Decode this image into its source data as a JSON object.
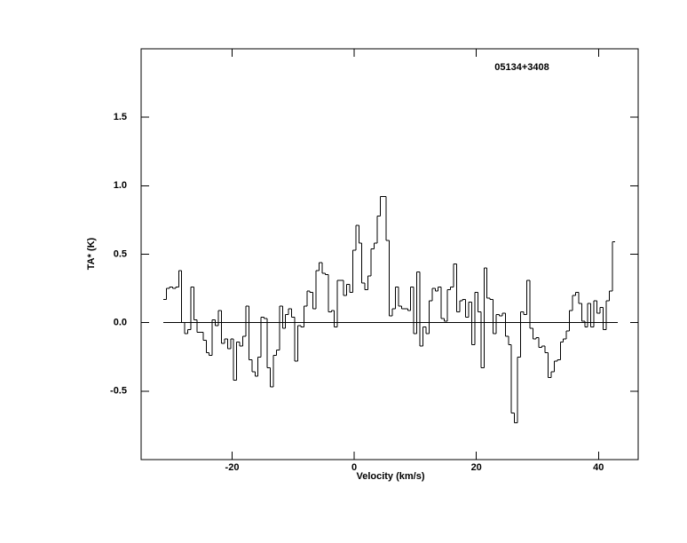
{
  "chart_data": {
    "type": "step",
    "annotation": "05134+3408",
    "xlabel": "Velocity (km/s)",
    "ylabel": "TA* (K)",
    "xlim": [
      -34.9,
      46.5
    ],
    "ylim": [
      -1.0,
      2.0
    ],
    "xticks": [
      -20,
      0,
      20,
      40
    ],
    "yticks": [
      {
        "value": -0.5,
        "label": "-0.5"
      },
      {
        "value": 0,
        "label": "0.0"
      },
      0.5,
      {
        "value": 1,
        "label": "1.0"
      },
      1.5
    ],
    "color": "#000000",
    "series": [
      {
        "name": "05134+3408",
        "color": "#000000",
        "x": [
          -31,
          -30.5,
          -30,
          -29.5,
          -29,
          -28.5,
          -28,
          -27.5,
          -27,
          -26.5,
          -26,
          -25.5,
          -25,
          -24.5,
          -24,
          -23.5,
          -23,
          -22.5,
          -22,
          -21.5,
          -21,
          -20.5,
          -20,
          -19.5,
          -19,
          -18.5,
          -18,
          -17.5,
          -17,
          -16.5,
          -16,
          -15.5,
          -15,
          -14.5,
          -14,
          -13.5,
          -13,
          -12.5,
          -12,
          -11.5,
          -11,
          -10.5,
          -10,
          -9.5,
          -9,
          -8.5,
          -8,
          -7.5,
          -7,
          -6.5,
          -6,
          -5.5,
          -5,
          -4.5,
          -4,
          -3.5,
          -3,
          -2.5,
          -2,
          -1.5,
          -1,
          -0.5,
          0,
          0.5,
          1,
          1.5,
          2,
          2.5,
          3,
          3.5,
          4,
          4.5,
          5,
          5.5,
          6,
          6.5,
          7,
          7.5,
          8,
          8.5,
          9,
          9.5,
          10,
          10.5,
          11,
          11.5,
          12,
          12.5,
          13,
          13.5,
          14,
          14.5,
          15,
          15.5,
          16,
          16.5,
          17,
          17.5,
          18,
          18.5,
          19,
          19.5,
          20,
          20.5,
          21,
          21.5,
          22,
          22.5,
          23,
          23.5,
          24,
          24.5,
          25,
          25.5,
          26,
          26.5,
          27,
          27.5,
          28,
          28.5,
          29,
          29.5,
          30,
          30.5,
          31,
          31.5,
          32,
          32.5,
          33,
          33.5,
          34,
          34.5,
          35,
          35.5,
          36,
          36.5,
          37,
          37.5,
          38,
          38.5,
          39,
          39.5,
          40,
          40.5,
          41,
          41.5,
          42,
          42.5
        ],
        "values": [
          0.17,
          0.25,
          0.26,
          0.25,
          0.26,
          0.38,
          0.0,
          -0.08,
          -0.05,
          0.26,
          0.02,
          -0.07,
          -0.07,
          -0.13,
          -0.22,
          -0.24,
          0.02,
          -0.02,
          0.09,
          -0.15,
          -0.12,
          -0.19,
          -0.12,
          -0.42,
          -0.14,
          -0.17,
          -0.1,
          0.12,
          -0.27,
          -0.36,
          -0.39,
          -0.25,
          0.04,
          0.03,
          -0.33,
          -0.47,
          -0.24,
          -0.2,
          0.12,
          -0.04,
          0.06,
          0.1,
          0.04,
          -0.28,
          -0.02,
          -0.03,
          0.12,
          0.23,
          0.22,
          0.1,
          0.38,
          0.44,
          0.36,
          0.35,
          0.08,
          0.09,
          -0.03,
          0.31,
          0.31,
          0.2,
          0.28,
          0.22,
          0.53,
          0.71,
          0.58,
          0.29,
          0.24,
          0.34,
          0.54,
          0.58,
          0.78,
          0.92,
          0.92,
          0.6,
          0.05,
          0.1,
          0.26,
          0.12,
          0.1,
          0.1,
          0.09,
          0.26,
          -0.08,
          0.37,
          -0.17,
          -0.03,
          -0.08,
          0.16,
          0.25,
          0.23,
          0.26,
          0.03,
          0.01,
          0.24,
          0.26,
          0.43,
          0.08,
          0.16,
          0.17,
          0.04,
          0.15,
          -0.16,
          0.22,
          0.08,
          -0.33,
          0.4,
          0.18,
          0.17,
          -0.08,
          0.06,
          0.05,
          0.07,
          -0.1,
          -0.16,
          -0.66,
          -0.73,
          -0.25,
          0.08,
          0.06,
          0.31,
          -0.04,
          -0.12,
          -0.11,
          -0.18,
          -0.17,
          -0.22,
          -0.4,
          -0.36,
          -0.28,
          -0.27,
          -0.14,
          -0.12,
          -0.06,
          0.09,
          0.2,
          0.22,
          0.14,
          0.01,
          -0.03,
          0.14,
          -0.03,
          0.16,
          0.07,
          0.11,
          -0.05,
          0.16,
          0.23,
          0.59
        ]
      }
    ]
  }
}
